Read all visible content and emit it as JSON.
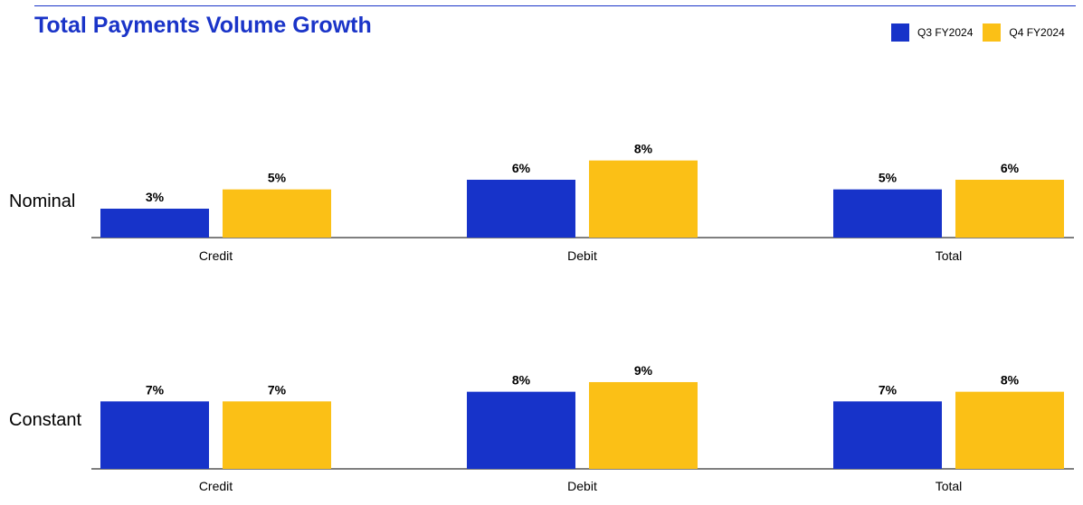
{
  "title": "Total Payments Volume Growth",
  "legend": [
    {
      "name": "Q3 FY2024",
      "color": "#1733c9"
    },
    {
      "name": "Q4 FY2024",
      "color": "#fbc016"
    }
  ],
  "chart_data": [
    {
      "type": "bar",
      "row_label": "Nominal",
      "categories": [
        "Credit",
        "Debit",
        "Total"
      ],
      "series": [
        {
          "name": "Q3 FY2024",
          "values": [
            3,
            6,
            5
          ]
        },
        {
          "name": "Q4 FY2024",
          "values": [
            5,
            8,
            6
          ]
        }
      ],
      "data_labels": [
        [
          "3%",
          "6%",
          "5%"
        ],
        [
          "5%",
          "8%",
          "6%"
        ]
      ],
      "value_unit": "%",
      "grid": false,
      "legend_position": "top-right"
    },
    {
      "type": "bar",
      "row_label": "Constant",
      "categories": [
        "Credit",
        "Debit",
        "Total"
      ],
      "series": [
        {
          "name": "Q3 FY2024",
          "values": [
            7,
            8,
            7
          ]
        },
        {
          "name": "Q4 FY2024",
          "values": [
            7,
            9,
            8
          ]
        }
      ],
      "data_labels": [
        [
          "7%",
          "8%",
          "7%"
        ],
        [
          "7%",
          "9%",
          "8%"
        ]
      ],
      "value_unit": "%",
      "grid": false,
      "legend_position": "top-right"
    }
  ]
}
